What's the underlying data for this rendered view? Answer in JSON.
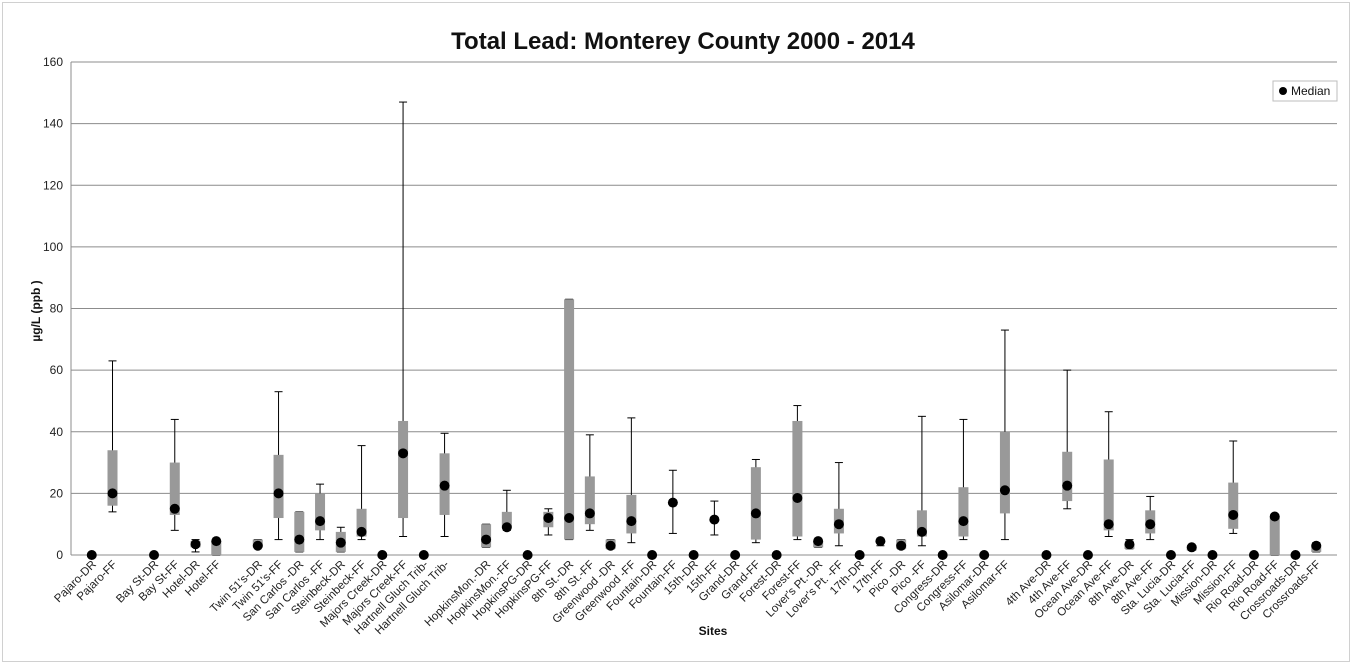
{
  "chart_data": {
    "type": "box",
    "title": "Total Lead:  Monterey County 2000 - 2014",
    "xlabel": "Sites",
    "ylabel": "µg/L  (ppb )",
    "ylim": [
      0,
      160
    ],
    "yticks": [
      0,
      20,
      40,
      60,
      80,
      100,
      120,
      140,
      160
    ],
    "grid": true,
    "legend": {
      "position": "right",
      "entries": [
        "Median"
      ]
    },
    "colors": {
      "box": "#999999",
      "median": "#000000",
      "grid": "#8c8c8c"
    },
    "categories": [
      "Pajaro-DR",
      "Pajaro-FF",
      "Bay St-DR",
      "Bay St-FF",
      "Hotel-DR",
      "Hotel-FF",
      "Twin 51's-DR",
      "Twin 51's-FF",
      "San Carlos -DR",
      "San Carlos -FF",
      "Steinbeck-DR",
      "Steinbeck-FF",
      "Majors Creek-DR",
      "Majors Creek-FF",
      "Hartnell Gluch Trib-",
      "Hartnell Gluch Trib-",
      "HopkinsMon.-DR",
      "HopkinsMon.-FF",
      "HopkinsPG-DR",
      "HopkinsPG-FF",
      "8th St.-DR",
      "8th St.-FF",
      "Greenwood -DR",
      "Greenwood -FF",
      "Fountain-DR",
      "Fountain-FF",
      "15th-DR",
      "15th-FF",
      "Grand-DR",
      "Grand-FF",
      "Forest-DR",
      "Forest-FF",
      "Lover's Pt.-DR",
      "Lover's Pt. -FF",
      "17th-DR",
      "17th-FF",
      "Pico -DR",
      "Pico -FF",
      "Congress-DR",
      "Congress-FF",
      "Asilomar-DR",
      "Asilomar-FF",
      "4th Ave-DR",
      "4th Ave-FF",
      "Ocean Ave-DR",
      "Ocean Ave-FF",
      "8th Ave-DR",
      "8th Ave-FF",
      "Sta. Lucia-DR",
      "Sta. Lucia-FF",
      "Mission-DR",
      "Mission-FF",
      "Rio Road-DR",
      "Rio Road-FF",
      "Crossroads-DR",
      "Crossroads-FF"
    ],
    "x_positions": [
      1,
      2,
      4,
      5,
      6,
      7,
      9,
      10,
      11,
      12,
      13,
      14,
      15,
      16,
      17,
      18,
      20,
      21,
      22,
      23,
      24,
      25,
      26,
      27,
      28,
      29,
      30,
      31,
      32,
      33,
      34,
      35,
      36,
      37,
      38,
      39,
      40,
      41,
      42,
      43,
      44,
      45,
      47,
      48,
      49,
      50,
      51,
      52,
      53,
      54,
      55,
      56,
      57,
      58,
      59,
      60
    ],
    "x_range": [
      0,
      61
    ],
    "series": [
      {
        "name": "Median",
        "min": [
          0,
          14,
          0,
          8,
          1,
          0,
          2.5,
          5,
          1,
          5,
          1,
          5,
          0,
          6,
          0,
          6,
          2.5,
          8,
          0,
          6.5,
          5,
          8,
          2,
          4,
          0,
          7,
          0,
          6.5,
          0,
          4,
          0,
          5,
          2.5,
          3,
          0,
          3,
          2,
          3,
          0,
          5,
          0,
          5,
          0,
          15,
          0,
          6,
          2,
          5,
          0,
          1.5,
          0,
          7,
          0,
          0,
          0,
          1
        ],
        "q1": [
          0,
          16,
          0,
          13,
          2.5,
          0,
          2.5,
          12,
          1,
          8,
          1,
          6,
          0,
          12,
          0,
          13,
          2.5,
          9,
          0,
          9,
          5,
          10,
          2,
          7,
          0,
          17,
          0,
          11,
          0,
          5,
          0,
          6,
          2.5,
          7,
          0,
          4.5,
          2,
          6,
          0,
          6,
          0,
          13.5,
          0,
          17.5,
          0,
          8,
          2,
          7,
          0,
          1.5,
          0,
          8.5,
          0,
          0,
          0,
          1
        ],
        "median": [
          0,
          20,
          0,
          15,
          3.5,
          4.5,
          3,
          20,
          5,
          11,
          4,
          7.5,
          0,
          33,
          0,
          22.5,
          5,
          9,
          0,
          12,
          12,
          13.5,
          3,
          11,
          0,
          17,
          0,
          11.5,
          0,
          13.5,
          0,
          18.5,
          4.5,
          10,
          0,
          4.5,
          3,
          7.5,
          0,
          11,
          0,
          21,
          0,
          22.5,
          0,
          10,
          3.5,
          10,
          0,
          2.5,
          0,
          13,
          0,
          12.5,
          0,
          3
        ],
        "q3": [
          0,
          34,
          0,
          30,
          4.5,
          4.5,
          5,
          32.5,
          14,
          20,
          7.5,
          15,
          0,
          43.5,
          0,
          33,
          10,
          14,
          0,
          14,
          83,
          25.5,
          5,
          19.5,
          0,
          17,
          0,
          11.5,
          0,
          28.5,
          0,
          43.5,
          4.5,
          15,
          0,
          4.5,
          5,
          14.5,
          0,
          22,
          0,
          40,
          0,
          33.5,
          0,
          31,
          3.5,
          14.5,
          0,
          2.5,
          0,
          23.5,
          0,
          12.5,
          0,
          3
        ],
        "max": [
          0,
          63,
          0,
          44,
          5,
          5,
          5,
          53,
          14,
          23,
          9,
          35.5,
          0,
          147,
          0,
          39.5,
          10,
          21,
          0,
          15,
          83,
          39,
          5,
          44.5,
          0,
          27.5,
          0,
          17.5,
          0,
          31,
          0,
          48.5,
          5,
          30,
          0,
          5,
          5,
          45,
          0,
          44,
          0,
          73,
          0,
          60,
          0,
          46.5,
          5,
          19,
          0,
          3,
          0,
          37,
          0,
          13,
          0,
          4
        ]
      }
    ]
  }
}
